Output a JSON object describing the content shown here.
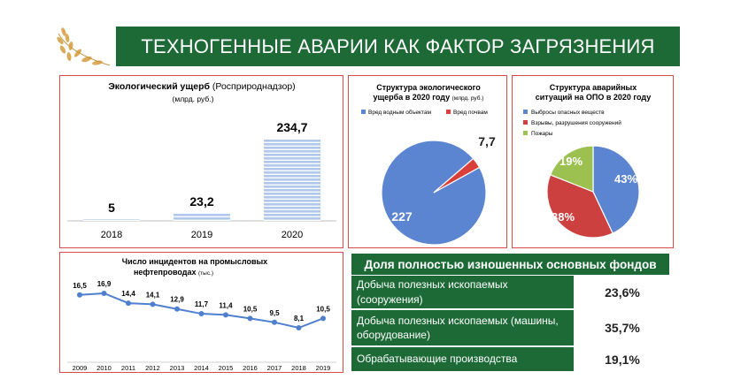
{
  "slide": {
    "title": "ТЕХНОГЕННЫЕ АВАРИИ КАК ФАКТОР ЗАГРЯЗНЕНИЯ",
    "accent_color": "#1d6a37",
    "border_color": "#d94a4a"
  },
  "chart_data": [
    {
      "type": "bar",
      "title": "Экологический ущерб",
      "title_suffix": "(Росприроднадзор)",
      "subtitle": "(млрд. руб.)",
      "categories": [
        "2018",
        "2019",
        "2020"
      ],
      "values": [
        5,
        23.2,
        234.7
      ],
      "value_labels": [
        "5",
        "23,2",
        "234,7"
      ],
      "ylim": [
        0,
        250
      ],
      "color": "#aec7ea"
    },
    {
      "type": "pie",
      "title_line1": "Структура экологического",
      "title_line2": "ущерба в 2020 году",
      "title_unit": "(млрд. руб.)",
      "legend": [
        "Вред водным объектам",
        "Вред почвам"
      ],
      "values": [
        227,
        7.7
      ],
      "value_labels": [
        "227",
        "7,7"
      ],
      "colors": [
        "#5b85d0",
        "#d9403c"
      ]
    },
    {
      "type": "pie",
      "title_line1": "Структура аварийных",
      "title_line2": "ситуаций на ОПО в 2020 году",
      "legend": [
        "Выбросы опасных веществ",
        "Взрывы, разрушения сооружений",
        "Пожары"
      ],
      "values": [
        43,
        38,
        19
      ],
      "value_labels": [
        "43%",
        "38%",
        "19%"
      ],
      "colors": [
        "#5b85d0",
        "#cc4140",
        "#9cc150"
      ]
    },
    {
      "type": "line",
      "title_line1": "Число инцидентов на промысловых",
      "title_line2": "нефтепроводах",
      "title_unit": "(тыс.)",
      "x": [
        "2009",
        "2010",
        "2011",
        "2012",
        "2013",
        "2014",
        "2015",
        "2016",
        "2017",
        "2018",
        "2019"
      ],
      "values": [
        16.5,
        16.9,
        14.4,
        14.1,
        12.9,
        11.7,
        11.4,
        10.5,
        9.5,
        8.1,
        10.5
      ],
      "value_labels": [
        "16,5",
        "16,9",
        "14,4",
        "14,1",
        "12,9",
        "11,7",
        "11,4",
        "10,5",
        "9,5",
        "8,1",
        "10,5"
      ],
      "ylim": [
        0,
        20
      ],
      "color": "#4f7fcf"
    }
  ],
  "funds": {
    "header": "Доля полностью изношенных основных фондов",
    "rows": [
      {
        "label": "Добыча полезных ископаемых (сооружения)",
        "value": "23,6%"
      },
      {
        "label": "Добыча полезных ископаемых (машины, оборудование)",
        "value": "35,7%"
      },
      {
        "label": "Обрабатывающие производства",
        "value": "19,1%"
      }
    ]
  }
}
